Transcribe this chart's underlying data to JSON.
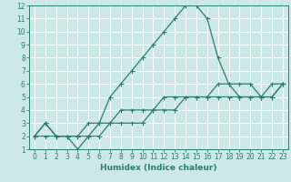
{
  "xlabel": "Humidex (Indice chaleur)",
  "bg_color": "#cce8e8",
  "grid_color": "#ffffff",
  "line_color": "#2e7d6e",
  "xlim": [
    -0.5,
    23.5
  ],
  "ylim": [
    1,
    12
  ],
  "xticks": [
    0,
    1,
    2,
    3,
    4,
    5,
    6,
    7,
    8,
    9,
    10,
    11,
    12,
    13,
    14,
    15,
    16,
    17,
    18,
    19,
    20,
    21,
    22,
    23
  ],
  "yticks": [
    1,
    2,
    3,
    4,
    5,
    6,
    7,
    8,
    9,
    10,
    11,
    12
  ],
  "line2_x": [
    0,
    1,
    2,
    3,
    4,
    5,
    6,
    7,
    8,
    9,
    10,
    11,
    12,
    13,
    14,
    15,
    16,
    17,
    18,
    19,
    20,
    21,
    22,
    23
  ],
  "line2_y": [
    2,
    3,
    2,
    2,
    1,
    2,
    3,
    5,
    6,
    7,
    8,
    9,
    10,
    11,
    12,
    12,
    11,
    8,
    6,
    5,
    5,
    5,
    5,
    6
  ],
  "line1_x": [
    0,
    1,
    2,
    3,
    4,
    5,
    6,
    7,
    8,
    9,
    10,
    11,
    12,
    13,
    14,
    15,
    16,
    17,
    18,
    19,
    20,
    21,
    22,
    23
  ],
  "line1_y": [
    2,
    2,
    2,
    2,
    2,
    2,
    2,
    3,
    3,
    3,
    3,
    4,
    4,
    4,
    5,
    5,
    5,
    6,
    6,
    6,
    6,
    5,
    5,
    6
  ],
  "line3_x": [
    0,
    1,
    2,
    3,
    4,
    5,
    6,
    7,
    8,
    9,
    10,
    11,
    12,
    13,
    14,
    15,
    16,
    17,
    18,
    19,
    20,
    21,
    22,
    23
  ],
  "line3_y": [
    2,
    3,
    2,
    2,
    2,
    3,
    3,
    3,
    4,
    4,
    4,
    4,
    5,
    5,
    5,
    5,
    5,
    5,
    5,
    5,
    5,
    5,
    6,
    6
  ]
}
